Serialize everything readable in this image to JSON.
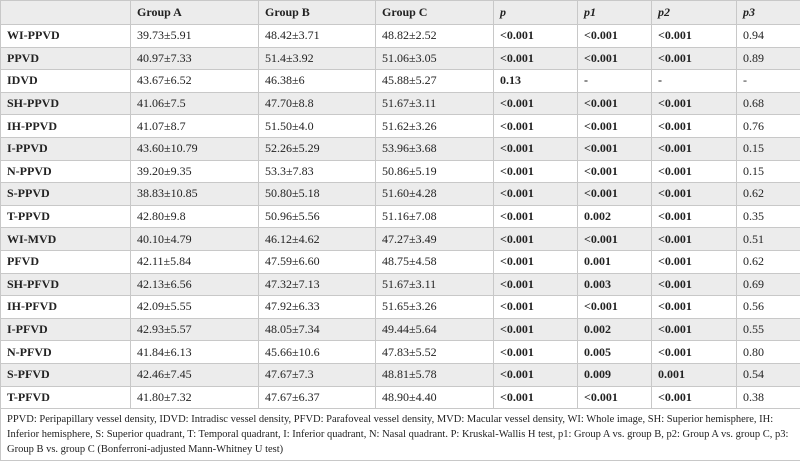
{
  "table": {
    "header": [
      "",
      "Group A",
      "Group B",
      "Group C",
      "p",
      "p1",
      "p2",
      "p3"
    ],
    "rows": [
      [
        "WI-PPVD",
        "39.73±5.91",
        "48.42±3.71",
        "48.82±2.52",
        "<0.001",
        "<0.001",
        "<0.001",
        "0.94"
      ],
      [
        "PPVD",
        "40.97±7.33",
        "51.4±3.92",
        "51.06±3.05",
        "<0.001",
        "<0.001",
        "<0.001",
        "0.89"
      ],
      [
        "IDVD",
        "43.67±6.52",
        "46.38±6",
        "45.88±5.27",
        "0.13",
        "-",
        "-",
        "-"
      ],
      [
        "SH-PPVD",
        "41.06±7.5",
        "47.70±8.8",
        "51.67±3.11",
        "<0.001",
        "<0.001",
        "<0.001",
        "0.68"
      ],
      [
        "IH-PPVD",
        "41.07±8.7",
        "51.50±4.0",
        "51.62±3.26",
        "<0.001",
        "<0.001",
        "<0.001",
        "0.76"
      ],
      [
        "I-PPVD",
        "43.60±10.79",
        "52.26±5.29",
        "53.96±3.68",
        "<0.001",
        "<0.001",
        "<0.001",
        "0.15"
      ],
      [
        "N-PPVD",
        "39.20±9.35",
        "53.3±7.83",
        "50.86±5.19",
        "<0.001",
        "<0.001",
        "<0.001",
        "0.15"
      ],
      [
        "S-PPVD",
        "38.83±10.85",
        "50.80±5.18",
        "51.60±4.28",
        "<0.001",
        "<0.001",
        "<0.001",
        "0.62"
      ],
      [
        "T-PPVD",
        "42.80±9.8",
        "50.96±5.56",
        "51.16±7.08",
        "<0.001",
        "0.002",
        "<0.001",
        "0.35"
      ],
      [
        "WI-MVD",
        "40.10±4.79",
        "46.12±4.62",
        "47.27±3.49",
        "<0.001",
        "<0.001",
        "<0.001",
        "0.51"
      ],
      [
        "PFVD",
        "42.11±5.84",
        "47.59±6.60",
        "48.75±4.58",
        "<0.001",
        "0.001",
        "<0.001",
        "0.62"
      ],
      [
        "SH-PFVD",
        "42.13±6.56",
        "47.32±7.13",
        "51.67±3.11",
        "<0.001",
        "0.003",
        "<0.001",
        "0.69"
      ],
      [
        "IH-PFVD",
        "42.09±5.55",
        "47.92±6.33",
        "51.65±3.26",
        "<0.001",
        "<0.001",
        "<0.001",
        "0.56"
      ],
      [
        "I-PFVD",
        "42.93±5.57",
        "48.05±7.34",
        "49.44±5.64",
        "<0.001",
        "0.002",
        "<0.001",
        "0.55"
      ],
      [
        "N-PFVD",
        "41.84±6.13",
        "45.66±10.6",
        "47.83±5.52",
        "<0.001",
        "0.005",
        "<0.001",
        "0.80"
      ],
      [
        "S-PFVD",
        "42.46±7.45",
        "47.67±7.3",
        "48.81±5.78",
        "<0.001",
        "0.009",
        "0.001",
        "0.54"
      ],
      [
        "T-PFVD",
        "41.80±7.32",
        "47.67±6.37",
        "48.90±4.40",
        "<0.001",
        "<0.001",
        "<0.001",
        "0.38"
      ]
    ],
    "footnote": "PPVD: Peripapillary vessel density, IDVD: Intradisc vessel density, PFVD: Parafoveal vessel density, MVD: Macular vessel density, WI: Whole image, SH: Superior hemisphere, IH: Inferior hemisphere, S: Superior quadrant, T: Temporal quadrant, I: Inferior quadrant, N: Nasal quadrant. P: Kruskal-Wallis H test, p1: Group A vs. group B, p2: Group A vs. group C, p3: Group B vs. group C (Bonferroni-adjusted Mann-Whitney U test)"
  }
}
